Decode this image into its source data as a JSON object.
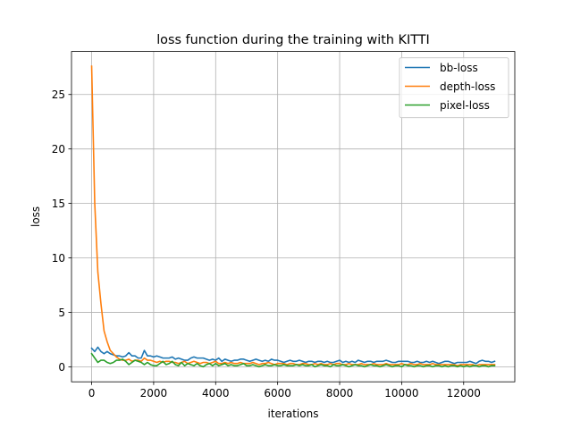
{
  "chart_data": {
    "type": "line",
    "title": "loss function during the training with KITTI",
    "xlabel": "iterations",
    "ylabel": "loss",
    "xlim": [
      -650,
      13650
    ],
    "ylim": [
      -1.38,
      28.95
    ],
    "xticks": [
      0,
      2000,
      4000,
      6000,
      8000,
      10000,
      12000
    ],
    "yticks": [
      0,
      5,
      10,
      15,
      20,
      25
    ],
    "grid": true,
    "legend_position": "upper right",
    "series": [
      {
        "name": "bb-loss",
        "color": "#1f77b4",
        "x": [
          0,
          100,
          200,
          300,
          400,
          500,
          600,
          700,
          800,
          900,
          1000,
          1100,
          1200,
          1300,
          1400,
          1500,
          1600,
          1700,
          1800,
          1900,
          2000,
          2100,
          2200,
          2300,
          2400,
          2500,
          2600,
          2700,
          2800,
          2900,
          3000,
          3100,
          3200,
          3300,
          3400,
          3500,
          3600,
          3700,
          3800,
          3900,
          4000,
          4100,
          4200,
          4300,
          4400,
          4500,
          4600,
          4700,
          4800,
          4900,
          5000,
          5100,
          5200,
          5300,
          5400,
          5500,
          5600,
          5700,
          5800,
          5900,
          6000,
          6100,
          6200,
          6300,
          6400,
          6500,
          6600,
          6700,
          6800,
          6900,
          7000,
          7100,
          7200,
          7300,
          7400,
          7500,
          7600,
          7700,
          7800,
          7900,
          8000,
          8100,
          8200,
          8300,
          8400,
          8500,
          8600,
          8700,
          8800,
          8900,
          9000,
          9100,
          9200,
          9300,
          9400,
          9500,
          9600,
          9700,
          9800,
          9900,
          10000,
          10100,
          10200,
          10300,
          10400,
          10500,
          10600,
          10700,
          10800,
          10900,
          11000,
          11100,
          11200,
          11300,
          11400,
          11500,
          11600,
          11700,
          11800,
          11900,
          12000,
          12100,
          12200,
          12300,
          12400,
          12500,
          12600,
          12700,
          12800,
          12900,
          13000
        ],
        "y": [
          1.7,
          1.4,
          1.8,
          1.4,
          1.2,
          1.4,
          1.2,
          1.1,
          1.0,
          1.0,
          0.9,
          1.0,
          1.3,
          1.0,
          1.0,
          0.8,
          0.8,
          1.5,
          1.0,
          1.0,
          0.9,
          1.0,
          0.9,
          0.8,
          0.8,
          0.8,
          0.9,
          0.7,
          0.8,
          0.7,
          0.6,
          0.6,
          0.8,
          0.9,
          0.8,
          0.8,
          0.8,
          0.7,
          0.6,
          0.7,
          0.6,
          0.8,
          0.5,
          0.7,
          0.6,
          0.5,
          0.6,
          0.6,
          0.7,
          0.7,
          0.6,
          0.5,
          0.6,
          0.7,
          0.6,
          0.5,
          0.6,
          0.5,
          0.7,
          0.6,
          0.6,
          0.5,
          0.4,
          0.5,
          0.6,
          0.5,
          0.5,
          0.6,
          0.5,
          0.4,
          0.5,
          0.5,
          0.4,
          0.5,
          0.5,
          0.4,
          0.5,
          0.4,
          0.4,
          0.5,
          0.6,
          0.4,
          0.5,
          0.4,
          0.5,
          0.4,
          0.6,
          0.5,
          0.4,
          0.5,
          0.5,
          0.4,
          0.5,
          0.5,
          0.5,
          0.6,
          0.5,
          0.4,
          0.4,
          0.5,
          0.5,
          0.5,
          0.5,
          0.4,
          0.4,
          0.5,
          0.4,
          0.4,
          0.5,
          0.4,
          0.5,
          0.4,
          0.3,
          0.4,
          0.5,
          0.5,
          0.4,
          0.3,
          0.4,
          0.4,
          0.4,
          0.4,
          0.5,
          0.4,
          0.3,
          0.5,
          0.6,
          0.5,
          0.5,
          0.4,
          0.5
        ]
      },
      {
        "name": "depth-loss",
        "color": "#ff7f0e",
        "x": [
          0,
          100,
          200,
          300,
          400,
          500,
          600,
          700,
          800,
          900,
          1000,
          1100,
          1200,
          1300,
          1400,
          1500,
          1600,
          1700,
          1800,
          1900,
          2000,
          2100,
          2200,
          2300,
          2400,
          2500,
          2600,
          2700,
          2800,
          2900,
          3000,
          3100,
          3200,
          3300,
          3400,
          3500,
          3600,
          3700,
          3800,
          3900,
          4000,
          4100,
          4200,
          4300,
          4400,
          4500,
          4600,
          4700,
          4800,
          4900,
          5000,
          5100,
          5200,
          5300,
          5400,
          5500,
          5600,
          5700,
          5800,
          5900,
          6000,
          6100,
          6200,
          6300,
          6400,
          6500,
          6600,
          6700,
          6800,
          6900,
          7000,
          7100,
          7200,
          7300,
          7400,
          7500,
          7600,
          7700,
          7800,
          7900,
          8000,
          8100,
          8200,
          8300,
          8400,
          8500,
          8600,
          8700,
          8800,
          8900,
          9000,
          9100,
          9200,
          9300,
          9400,
          9500,
          9600,
          9700,
          9800,
          9900,
          10000,
          10100,
          10200,
          10300,
          10400,
          10500,
          10600,
          10700,
          10800,
          10900,
          11000,
          11100,
          11200,
          11300,
          11400,
          11500,
          11600,
          11700,
          11800,
          11900,
          12000,
          12100,
          12200,
          12300,
          12400,
          12500,
          12600,
          12700,
          12800,
          12900,
          13000
        ],
        "y": [
          27.6,
          15.0,
          8.7,
          5.8,
          3.3,
          2.3,
          1.5,
          1.2,
          0.9,
          0.7,
          0.6,
          0.6,
          0.7,
          0.5,
          0.6,
          0.6,
          0.5,
          0.8,
          0.6,
          0.6,
          0.5,
          0.4,
          0.5,
          0.4,
          0.5,
          0.5,
          0.4,
          0.4,
          0.3,
          0.4,
          0.5,
          0.3,
          0.4,
          0.5,
          0.4,
          0.3,
          0.4,
          0.4,
          0.3,
          0.4,
          0.5,
          0.3,
          0.3,
          0.4,
          0.3,
          0.4,
          0.3,
          0.3,
          0.4,
          0.3,
          0.3,
          0.3,
          0.4,
          0.3,
          0.2,
          0.3,
          0.3,
          0.4,
          0.3,
          0.2,
          0.3,
          0.3,
          0.3,
          0.2,
          0.3,
          0.3,
          0.2,
          0.2,
          0.3,
          0.3,
          0.2,
          0.2,
          0.3,
          0.2,
          0.3,
          0.2,
          0.2,
          0.3,
          0.2,
          0.3,
          0.3,
          0.2,
          0.2,
          0.3,
          0.2,
          0.2,
          0.2,
          0.3,
          0.2,
          0.2,
          0.2,
          0.3,
          0.2,
          0.2,
          0.2,
          0.3,
          0.2,
          0.2,
          0.2,
          0.2,
          0.3,
          0.2,
          0.2,
          0.3,
          0.2,
          0.2,
          0.3,
          0.2,
          0.2,
          0.2,
          0.3,
          0.2,
          0.2,
          0.2,
          0.2,
          0.2,
          0.2,
          0.2,
          0.1,
          0.2,
          0.2,
          0.2,
          0.2,
          0.2,
          0.1,
          0.2,
          0.2,
          0.2,
          0.2,
          0.2,
          0.2
        ]
      },
      {
        "name": "pixel-loss",
        "color": "#2ca02c",
        "x": [
          0,
          100,
          200,
          300,
          400,
          500,
          600,
          700,
          800,
          900,
          1000,
          1100,
          1200,
          1300,
          1400,
          1500,
          1600,
          1700,
          1800,
          1900,
          2000,
          2100,
          2200,
          2300,
          2400,
          2500,
          2600,
          2700,
          2800,
          2900,
          3000,
          3100,
          3200,
          3300,
          3400,
          3500,
          3600,
          3700,
          3800,
          3900,
          4000,
          4100,
          4200,
          4300,
          4400,
          4500,
          4600,
          4700,
          4800,
          4900,
          5000,
          5100,
          5200,
          5300,
          5400,
          5500,
          5600,
          5700,
          5800,
          5900,
          6000,
          6100,
          6200,
          6300,
          6400,
          6500,
          6600,
          6700,
          6800,
          6900,
          7000,
          7100,
          7200,
          7300,
          7400,
          7500,
          7600,
          7700,
          7800,
          7900,
          8000,
          8100,
          8200,
          8300,
          8400,
          8500,
          8600,
          8700,
          8800,
          8900,
          9000,
          9100,
          9200,
          9300,
          9400,
          9500,
          9600,
          9700,
          9800,
          9900,
          10000,
          10100,
          10200,
          10300,
          10400,
          10500,
          10600,
          10700,
          10800,
          10900,
          11000,
          11100,
          11200,
          11300,
          11400,
          11500,
          11600,
          11700,
          11800,
          11900,
          12000,
          12100,
          12200,
          12300,
          12400,
          12500,
          12600,
          12700,
          12800,
          12900,
          13000
        ],
        "y": [
          1.2,
          0.8,
          0.4,
          0.6,
          0.6,
          0.4,
          0.3,
          0.4,
          0.6,
          0.6,
          0.7,
          0.5,
          0.2,
          0.4,
          0.6,
          0.5,
          0.4,
          0.2,
          0.4,
          0.2,
          0.1,
          0.1,
          0.3,
          0.5,
          0.2,
          0.3,
          0.5,
          0.2,
          0.1,
          0.4,
          0.1,
          0.3,
          0.2,
          0.1,
          0.3,
          0.1,
          0.0,
          0.2,
          0.3,
          0.1,
          0.3,
          0.1,
          0.2,
          0.3,
          0.1,
          0.2,
          0.1,
          0.1,
          0.2,
          0.3,
          0.1,
          0.1,
          0.2,
          0.1,
          0.0,
          0.1,
          0.2,
          0.1,
          0.1,
          0.2,
          0.1,
          0.1,
          0.2,
          0.1,
          0.1,
          0.1,
          0.2,
          0.1,
          0.2,
          0.1,
          0.1,
          0.2,
          0.0,
          0.1,
          0.2,
          0.1,
          0.1,
          0.0,
          0.2,
          0.1,
          0.1,
          0.2,
          0.1,
          0.0,
          0.1,
          0.2,
          0.1,
          0.1,
          0.0,
          0.1,
          0.2,
          0.1,
          0.1,
          0.0,
          0.1,
          0.2,
          0.1,
          0.0,
          0.1,
          0.1,
          0.0,
          0.2,
          0.1,
          0.1,
          0.0,
          0.1,
          0.1,
          0.0,
          0.1,
          0.1,
          0.0,
          0.1,
          0.1,
          0.0,
          0.1,
          0.0,
          0.1,
          0.1,
          0.0,
          0.1,
          0.0,
          0.1,
          0.0,
          0.1,
          0.1,
          0.0,
          0.1,
          0.1,
          0.0,
          0.1,
          0.1
        ]
      }
    ]
  }
}
